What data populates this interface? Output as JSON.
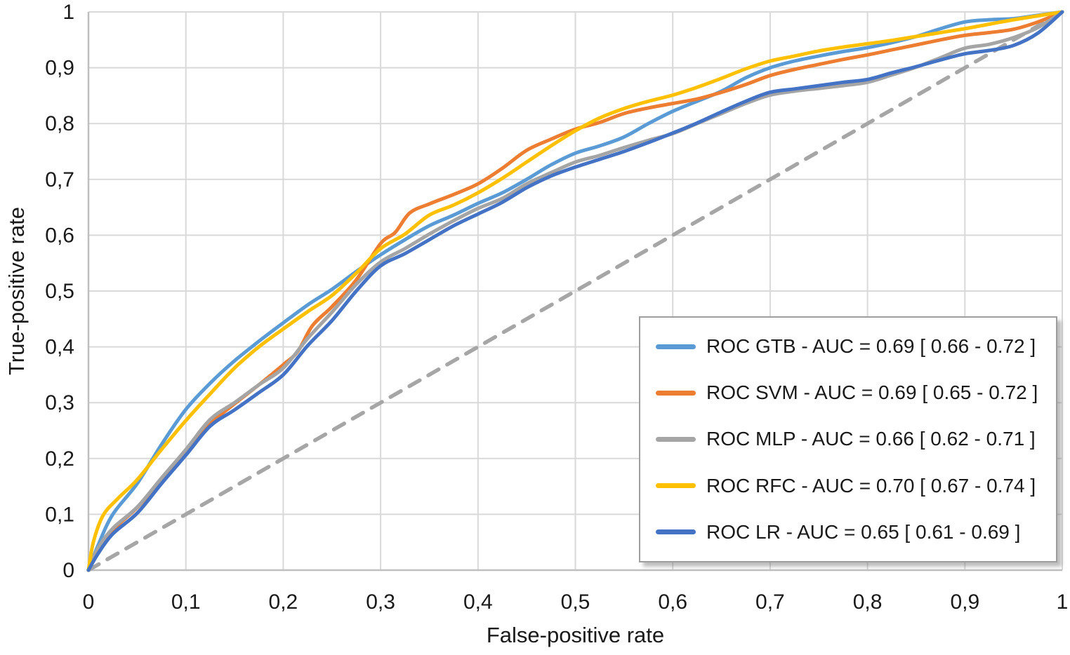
{
  "chart_data": {
    "type": "line",
    "title": "",
    "xlabel": "False-positive rate",
    "ylabel": "True-positive rate",
    "xlim": [
      0,
      1
    ],
    "ylim": [
      0,
      1
    ],
    "grid": true,
    "decimal_separator": ",",
    "x_tick_labels": [
      "0",
      "0,1",
      "0,2",
      "0,3",
      "0,4",
      "0,5",
      "0,6",
      "0,7",
      "0,8",
      "0,9",
      "1"
    ],
    "y_tick_labels": [
      "0",
      "0,1",
      "0,2",
      "0,3",
      "0,4",
      "0,5",
      "0,6",
      "0,7",
      "0,8",
      "0,9",
      "1"
    ],
    "legend_position": "inside-bottom-right",
    "colors": {
      "grid": "#d9d9d9",
      "axis": "#bfbfbf",
      "diagonal": "#a6a6a6",
      "text": "#1a1a1a"
    },
    "reference_line": {
      "name": "chance-diagonal",
      "style": "dashed",
      "color": "#a6a6a6",
      "points": [
        [
          0,
          0
        ],
        [
          1,
          1
        ]
      ]
    },
    "series": [
      {
        "name": "GTB",
        "label": "ROC GTB - AUC = 0.69 [ 0.66 - 0.72 ]",
        "color": "#5B9BD5",
        "auc": 0.69,
        "auc_ci": [
          0.66,
          0.72
        ],
        "points": [
          [
            0,
            0
          ],
          [
            0.01,
            0.045
          ],
          [
            0.025,
            0.1
          ],
          [
            0.05,
            0.155
          ],
          [
            0.075,
            0.225
          ],
          [
            0.1,
            0.288
          ],
          [
            0.125,
            0.335
          ],
          [
            0.15,
            0.375
          ],
          [
            0.175,
            0.41
          ],
          [
            0.2,
            0.443
          ],
          [
            0.225,
            0.475
          ],
          [
            0.25,
            0.503
          ],
          [
            0.275,
            0.535
          ],
          [
            0.3,
            0.565
          ],
          [
            0.325,
            0.592
          ],
          [
            0.35,
            0.617
          ],
          [
            0.375,
            0.636
          ],
          [
            0.4,
            0.657
          ],
          [
            0.425,
            0.676
          ],
          [
            0.45,
            0.7
          ],
          [
            0.475,
            0.726
          ],
          [
            0.5,
            0.747
          ],
          [
            0.525,
            0.76
          ],
          [
            0.55,
            0.776
          ],
          [
            0.575,
            0.8
          ],
          [
            0.6,
            0.822
          ],
          [
            0.625,
            0.84
          ],
          [
            0.65,
            0.858
          ],
          [
            0.675,
            0.882
          ],
          [
            0.7,
            0.9
          ],
          [
            0.725,
            0.912
          ],
          [
            0.75,
            0.921
          ],
          [
            0.775,
            0.929
          ],
          [
            0.8,
            0.936
          ],
          [
            0.825,
            0.945
          ],
          [
            0.85,
            0.956
          ],
          [
            0.875,
            0.97
          ],
          [
            0.9,
            0.982
          ],
          [
            0.925,
            0.986
          ],
          [
            0.95,
            0.988
          ],
          [
            0.975,
            0.994
          ],
          [
            1,
            1
          ]
        ]
      },
      {
        "name": "SVM",
        "label": "ROC SVM - AUC = 0.69 [ 0.65 - 0.72 ]",
        "color": "#ED7D31",
        "auc": 0.69,
        "auc_ci": [
          0.65,
          0.72
        ],
        "points": [
          [
            0,
            0
          ],
          [
            0.01,
            0.035
          ],
          [
            0.025,
            0.072
          ],
          [
            0.05,
            0.112
          ],
          [
            0.075,
            0.162
          ],
          [
            0.1,
            0.212
          ],
          [
            0.125,
            0.262
          ],
          [
            0.15,
            0.298
          ],
          [
            0.175,
            0.332
          ],
          [
            0.2,
            0.368
          ],
          [
            0.215,
            0.392
          ],
          [
            0.23,
            0.438
          ],
          [
            0.25,
            0.472
          ],
          [
            0.275,
            0.52
          ],
          [
            0.3,
            0.585
          ],
          [
            0.315,
            0.605
          ],
          [
            0.33,
            0.64
          ],
          [
            0.35,
            0.656
          ],
          [
            0.375,
            0.673
          ],
          [
            0.4,
            0.692
          ],
          [
            0.425,
            0.72
          ],
          [
            0.45,
            0.752
          ],
          [
            0.475,
            0.772
          ],
          [
            0.5,
            0.79
          ],
          [
            0.525,
            0.802
          ],
          [
            0.55,
            0.818
          ],
          [
            0.575,
            0.828
          ],
          [
            0.6,
            0.836
          ],
          [
            0.625,
            0.844
          ],
          [
            0.65,
            0.856
          ],
          [
            0.675,
            0.87
          ],
          [
            0.7,
            0.886
          ],
          [
            0.725,
            0.897
          ],
          [
            0.75,
            0.906
          ],
          [
            0.775,
            0.915
          ],
          [
            0.8,
            0.923
          ],
          [
            0.825,
            0.932
          ],
          [
            0.85,
            0.941
          ],
          [
            0.875,
            0.95
          ],
          [
            0.9,
            0.958
          ],
          [
            0.925,
            0.963
          ],
          [
            0.95,
            0.969
          ],
          [
            0.975,
            0.982
          ],
          [
            1,
            1
          ]
        ]
      },
      {
        "name": "MLP",
        "label": "ROC MLP - AUC = 0.66 [ 0.62 - 0.71 ]",
        "color": "#A5A5A5",
        "auc": 0.66,
        "auc_ci": [
          0.62,
          0.71
        ],
        "points": [
          [
            0,
            0
          ],
          [
            0.01,
            0.04
          ],
          [
            0.025,
            0.075
          ],
          [
            0.05,
            0.113
          ],
          [
            0.075,
            0.165
          ],
          [
            0.1,
            0.216
          ],
          [
            0.125,
            0.27
          ],
          [
            0.15,
            0.3
          ],
          [
            0.175,
            0.332
          ],
          [
            0.2,
            0.362
          ],
          [
            0.225,
            0.415
          ],
          [
            0.25,
            0.462
          ],
          [
            0.275,
            0.512
          ],
          [
            0.3,
            0.552
          ],
          [
            0.325,
            0.576
          ],
          [
            0.35,
            0.602
          ],
          [
            0.375,
            0.626
          ],
          [
            0.4,
            0.648
          ],
          [
            0.425,
            0.666
          ],
          [
            0.45,
            0.692
          ],
          [
            0.475,
            0.712
          ],
          [
            0.5,
            0.731
          ],
          [
            0.525,
            0.743
          ],
          [
            0.55,
            0.757
          ],
          [
            0.575,
            0.77
          ],
          [
            0.6,
            0.782
          ],
          [
            0.625,
            0.8
          ],
          [
            0.65,
            0.818
          ],
          [
            0.675,
            0.836
          ],
          [
            0.7,
            0.851
          ],
          [
            0.725,
            0.858
          ],
          [
            0.75,
            0.863
          ],
          [
            0.775,
            0.868
          ],
          [
            0.8,
            0.874
          ],
          [
            0.825,
            0.887
          ],
          [
            0.85,
            0.901
          ],
          [
            0.875,
            0.918
          ],
          [
            0.9,
            0.935
          ],
          [
            0.925,
            0.942
          ],
          [
            0.95,
            0.954
          ],
          [
            0.975,
            0.972
          ],
          [
            1,
            1
          ]
        ]
      },
      {
        "name": "RFC",
        "label": "ROC RFC - AUC = 0.70 [ 0.67 - 0.74 ]",
        "color": "#FFC000",
        "auc": 0.7,
        "auc_ci": [
          0.67,
          0.74
        ],
        "points": [
          [
            0,
            0
          ],
          [
            0.005,
            0.05
          ],
          [
            0.015,
            0.098
          ],
          [
            0.03,
            0.128
          ],
          [
            0.05,
            0.162
          ],
          [
            0.075,
            0.216
          ],
          [
            0.1,
            0.268
          ],
          [
            0.125,
            0.316
          ],
          [
            0.15,
            0.362
          ],
          [
            0.175,
            0.4
          ],
          [
            0.2,
            0.432
          ],
          [
            0.225,
            0.463
          ],
          [
            0.25,
            0.492
          ],
          [
            0.275,
            0.532
          ],
          [
            0.3,
            0.576
          ],
          [
            0.325,
            0.602
          ],
          [
            0.35,
            0.636
          ],
          [
            0.375,
            0.654
          ],
          [
            0.4,
            0.676
          ],
          [
            0.425,
            0.702
          ],
          [
            0.45,
            0.731
          ],
          [
            0.475,
            0.76
          ],
          [
            0.5,
            0.787
          ],
          [
            0.525,
            0.81
          ],
          [
            0.55,
            0.827
          ],
          [
            0.575,
            0.84
          ],
          [
            0.6,
            0.851
          ],
          [
            0.625,
            0.865
          ],
          [
            0.65,
            0.881
          ],
          [
            0.675,
            0.898
          ],
          [
            0.7,
            0.912
          ],
          [
            0.725,
            0.921
          ],
          [
            0.75,
            0.93
          ],
          [
            0.775,
            0.937
          ],
          [
            0.8,
            0.943
          ],
          [
            0.825,
            0.949
          ],
          [
            0.85,
            0.956
          ],
          [
            0.875,
            0.963
          ],
          [
            0.9,
            0.97
          ],
          [
            0.925,
            0.978
          ],
          [
            0.95,
            0.986
          ],
          [
            0.975,
            0.993
          ],
          [
            1,
            1
          ]
        ]
      },
      {
        "name": "LR",
        "label": "ROC LR - AUC = 0.65 [ 0.61 - 0.69 ]",
        "color": "#4472C4",
        "auc": 0.65,
        "auc_ci": [
          0.61,
          0.69
        ],
        "points": [
          [
            0,
            0
          ],
          [
            0.01,
            0.03
          ],
          [
            0.025,
            0.065
          ],
          [
            0.05,
            0.102
          ],
          [
            0.075,
            0.155
          ],
          [
            0.1,
            0.206
          ],
          [
            0.125,
            0.258
          ],
          [
            0.15,
            0.287
          ],
          [
            0.175,
            0.318
          ],
          [
            0.2,
            0.35
          ],
          [
            0.225,
            0.402
          ],
          [
            0.25,
            0.447
          ],
          [
            0.275,
            0.5
          ],
          [
            0.3,
            0.545
          ],
          [
            0.325,
            0.567
          ],
          [
            0.35,
            0.592
          ],
          [
            0.375,
            0.617
          ],
          [
            0.4,
            0.638
          ],
          [
            0.425,
            0.659
          ],
          [
            0.45,
            0.685
          ],
          [
            0.475,
            0.706
          ],
          [
            0.5,
            0.722
          ],
          [
            0.525,
            0.736
          ],
          [
            0.55,
            0.75
          ],
          [
            0.575,
            0.766
          ],
          [
            0.6,
            0.783
          ],
          [
            0.625,
            0.801
          ],
          [
            0.65,
            0.821
          ],
          [
            0.675,
            0.84
          ],
          [
            0.7,
            0.856
          ],
          [
            0.725,
            0.862
          ],
          [
            0.75,
            0.868
          ],
          [
            0.775,
            0.874
          ],
          [
            0.8,
            0.879
          ],
          [
            0.825,
            0.891
          ],
          [
            0.85,
            0.902
          ],
          [
            0.875,
            0.914
          ],
          [
            0.9,
            0.925
          ],
          [
            0.925,
            0.931
          ],
          [
            0.95,
            0.94
          ],
          [
            0.975,
            0.962
          ],
          [
            1,
            1
          ]
        ]
      }
    ]
  }
}
